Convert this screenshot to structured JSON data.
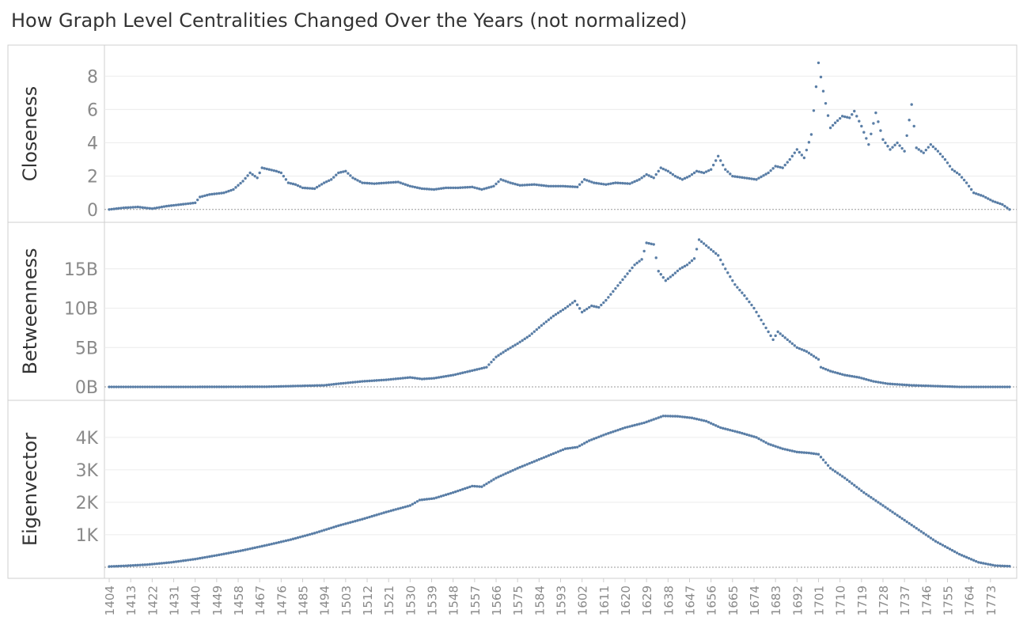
{
  "title": "How Graph Level Centralities Changed Over the Years (not normalized)",
  "colors": {
    "point": "#5a7ea6",
    "grid": "#ececec",
    "border": "#cfcfcf",
    "zero": "#9a9a9a"
  },
  "chart_data": {
    "type": "scatter",
    "grid": true,
    "x": {
      "label": "",
      "range": [
        1402,
        1784
      ],
      "tick_labels": [
        "1404",
        "1413",
        "1422",
        "1431",
        "1440",
        "1449",
        "1458",
        "1467",
        "1476",
        "1485",
        "1494",
        "1503",
        "1512",
        "1521",
        "1530",
        "1539",
        "1548",
        "1557",
        "1566",
        "1575",
        "1584",
        "1593",
        "1602",
        "1611",
        "1620",
        "1629",
        "1638",
        "1647",
        "1656",
        "1665",
        "1674",
        "1683",
        "1692",
        "1701",
        "1710",
        "1719",
        "1728",
        "1737",
        "1746",
        "1755",
        "1764",
        "1773"
      ]
    },
    "panels": [
      {
        "name": "Closeness",
        "ylim": [
          -0.2,
          9.2
        ],
        "ticks": [
          0,
          2,
          4,
          6,
          8
        ],
        "tick_labels": [
          "0",
          "2",
          "4",
          "6",
          "8"
        ],
        "points": [
          [
            1404,
            0
          ],
          [
            1410,
            0.1
          ],
          [
            1416,
            0.15
          ],
          [
            1422,
            0.05
          ],
          [
            1428,
            0.2
          ],
          [
            1434,
            0.3
          ],
          [
            1440,
            0.4
          ],
          [
            1442,
            0.75
          ],
          [
            1446,
            0.9
          ],
          [
            1452,
            1.0
          ],
          [
            1456,
            1.2
          ],
          [
            1460,
            1.7
          ],
          [
            1463,
            2.2
          ],
          [
            1466,
            1.9
          ],
          [
            1468,
            2.5
          ],
          [
            1471,
            2.4
          ],
          [
            1474,
            2.3
          ],
          [
            1476,
            2.2
          ],
          [
            1479,
            1.6
          ],
          [
            1482,
            1.5
          ],
          [
            1485,
            1.3
          ],
          [
            1490,
            1.25
          ],
          [
            1494,
            1.6
          ],
          [
            1497,
            1.8
          ],
          [
            1500,
            2.2
          ],
          [
            1503,
            2.3
          ],
          [
            1506,
            1.9
          ],
          [
            1510,
            1.6
          ],
          [
            1515,
            1.55
          ],
          [
            1520,
            1.6
          ],
          [
            1525,
            1.65
          ],
          [
            1530,
            1.4
          ],
          [
            1535,
            1.25
          ],
          [
            1540,
            1.2
          ],
          [
            1545,
            1.3
          ],
          [
            1550,
            1.3
          ],
          [
            1556,
            1.35
          ],
          [
            1560,
            1.2
          ],
          [
            1565,
            1.4
          ],
          [
            1568,
            1.8
          ],
          [
            1572,
            1.6
          ],
          [
            1576,
            1.45
          ],
          [
            1582,
            1.5
          ],
          [
            1588,
            1.4
          ],
          [
            1594,
            1.4
          ],
          [
            1600,
            1.35
          ],
          [
            1603,
            1.8
          ],
          [
            1607,
            1.6
          ],
          [
            1612,
            1.5
          ],
          [
            1616,
            1.6
          ],
          [
            1622,
            1.55
          ],
          [
            1626,
            1.8
          ],
          [
            1629,
            2.1
          ],
          [
            1632,
            1.9
          ],
          [
            1635,
            2.5
          ],
          [
            1638,
            2.3
          ],
          [
            1641,
            2.0
          ],
          [
            1644,
            1.8
          ],
          [
            1647,
            2.0
          ],
          [
            1650,
            2.3
          ],
          [
            1653,
            2.2
          ],
          [
            1656,
            2.4
          ],
          [
            1659,
            3.2
          ],
          [
            1662,
            2.4
          ],
          [
            1665,
            2.0
          ],
          [
            1670,
            1.9
          ],
          [
            1675,
            1.8
          ],
          [
            1680,
            2.2
          ],
          [
            1683,
            2.6
          ],
          [
            1686,
            2.5
          ],
          [
            1689,
            3.0
          ],
          [
            1692,
            3.6
          ],
          [
            1695,
            3.1
          ],
          [
            1698,
            4.5
          ],
          [
            1701,
            8.8
          ],
          [
            1703,
            7.1
          ],
          [
            1706,
            4.9
          ],
          [
            1708,
            5.2
          ],
          [
            1711,
            5.6
          ],
          [
            1714,
            5.5
          ],
          [
            1716,
            5.9
          ],
          [
            1719,
            5.0
          ],
          [
            1722,
            3.9
          ],
          [
            1725,
            5.8
          ],
          [
            1728,
            4.2
          ],
          [
            1731,
            3.6
          ],
          [
            1734,
            4.0
          ],
          [
            1737,
            3.5
          ],
          [
            1740,
            6.3
          ],
          [
            1742,
            3.7
          ],
          [
            1745,
            3.4
          ],
          [
            1748,
            3.9
          ],
          [
            1751,
            3.5
          ],
          [
            1754,
            3.0
          ],
          [
            1757,
            2.4
          ],
          [
            1760,
            2.1
          ],
          [
            1763,
            1.6
          ],
          [
            1766,
            1.0
          ],
          [
            1770,
            0.8
          ],
          [
            1774,
            0.5
          ],
          [
            1778,
            0.3
          ],
          [
            1781,
            0
          ]
        ]
      },
      {
        "name": "Betweenness",
        "ylim": [
          -0.5,
          19.5
        ],
        "ticks": [
          0,
          5,
          10,
          15
        ],
        "tick_labels": [
          "0B",
          "5B",
          "10B",
          "15B"
        ],
        "points": [
          [
            1404,
            0
          ],
          [
            1440,
            0
          ],
          [
            1470,
            0.02
          ],
          [
            1494,
            0.2
          ],
          [
            1500,
            0.4
          ],
          [
            1510,
            0.7
          ],
          [
            1520,
            0.9
          ],
          [
            1530,
            1.2
          ],
          [
            1535,
            1.0
          ],
          [
            1540,
            1.1
          ],
          [
            1548,
            1.5
          ],
          [
            1555,
            2.0
          ],
          [
            1562,
            2.5
          ],
          [
            1566,
            3.8
          ],
          [
            1570,
            4.6
          ],
          [
            1575,
            5.5
          ],
          [
            1580,
            6.5
          ],
          [
            1585,
            7.8
          ],
          [
            1590,
            9.0
          ],
          [
            1595,
            10.0
          ],
          [
            1599,
            10.9
          ],
          [
            1602,
            9.5
          ],
          [
            1606,
            10.3
          ],
          [
            1609,
            10.1
          ],
          [
            1612,
            11.0
          ],
          [
            1616,
            12.5
          ],
          [
            1620,
            14.0
          ],
          [
            1624,
            15.5
          ],
          [
            1627,
            16.2
          ],
          [
            1629,
            18.3
          ],
          [
            1632,
            18.1
          ],
          [
            1634,
            14.7
          ],
          [
            1637,
            13.5
          ],
          [
            1640,
            14.2
          ],
          [
            1643,
            15.0
          ],
          [
            1646,
            15.5
          ],
          [
            1649,
            16.3
          ],
          [
            1651,
            18.7
          ],
          [
            1655,
            17.7
          ],
          [
            1659,
            16.7
          ],
          [
            1662,
            15.0
          ],
          [
            1666,
            13.0
          ],
          [
            1670,
            11.6
          ],
          [
            1674,
            10.0
          ],
          [
            1678,
            8.0
          ],
          [
            1682,
            6.0
          ],
          [
            1684,
            7.0
          ],
          [
            1688,
            6.0
          ],
          [
            1692,
            5.0
          ],
          [
            1696,
            4.5
          ],
          [
            1701,
            3.5
          ],
          [
            1702,
            2.5
          ],
          [
            1706,
            2.0
          ],
          [
            1712,
            1.5
          ],
          [
            1718,
            1.2
          ],
          [
            1724,
            0.7
          ],
          [
            1730,
            0.4
          ],
          [
            1740,
            0.2
          ],
          [
            1750,
            0.1
          ],
          [
            1760,
            0
          ],
          [
            1781,
            0
          ]
        ]
      },
      {
        "name": "Eigenvector",
        "ylim": [
          -50,
          4850
        ],
        "ticks": [
          1000,
          2000,
          3000,
          4000
        ],
        "tick_labels": [
          "1K",
          "2K",
          "3K",
          "4K"
        ],
        "points": [
          [
            1404,
            20
          ],
          [
            1410,
            40
          ],
          [
            1420,
            80
          ],
          [
            1430,
            150
          ],
          [
            1440,
            250
          ],
          [
            1450,
            380
          ],
          [
            1460,
            520
          ],
          [
            1470,
            680
          ],
          [
            1480,
            850
          ],
          [
            1490,
            1050
          ],
          [
            1500,
            1280
          ],
          [
            1510,
            1480
          ],
          [
            1520,
            1700
          ],
          [
            1530,
            1900
          ],
          [
            1534,
            2070
          ],
          [
            1540,
            2120
          ],
          [
            1548,
            2300
          ],
          [
            1556,
            2500
          ],
          [
            1560,
            2480
          ],
          [
            1566,
            2750
          ],
          [
            1575,
            3050
          ],
          [
            1585,
            3350
          ],
          [
            1595,
            3650
          ],
          [
            1600,
            3700
          ],
          [
            1605,
            3900
          ],
          [
            1612,
            4100
          ],
          [
            1620,
            4300
          ],
          [
            1628,
            4450
          ],
          [
            1636,
            4660
          ],
          [
            1642,
            4650
          ],
          [
            1648,
            4600
          ],
          [
            1654,
            4500
          ],
          [
            1660,
            4300
          ],
          [
            1668,
            4150
          ],
          [
            1675,
            4000
          ],
          [
            1680,
            3800
          ],
          [
            1686,
            3650
          ],
          [
            1692,
            3550
          ],
          [
            1697,
            3520
          ],
          [
            1701,
            3480
          ],
          [
            1706,
            3050
          ],
          [
            1712,
            2750
          ],
          [
            1720,
            2300
          ],
          [
            1730,
            1800
          ],
          [
            1740,
            1300
          ],
          [
            1750,
            800
          ],
          [
            1760,
            400
          ],
          [
            1768,
            150
          ],
          [
            1775,
            50
          ],
          [
            1781,
            30
          ]
        ]
      }
    ]
  }
}
